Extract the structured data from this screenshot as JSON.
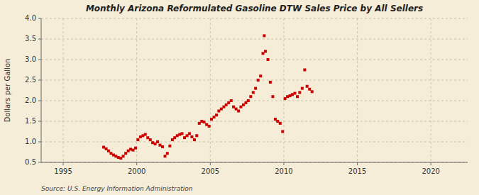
{
  "chart_data": {
    "type": "scatter",
    "title": "Monthly Arizona Reformulated Gasoline DTW Sales Price by All Sellers",
    "ylabel": "Dollars per Gallon",
    "annotations": [
      "Source: U.S. Energy Information Administration"
    ],
    "color": "#CC0000",
    "marker": "square",
    "grid": true,
    "xlim": [
      1993.5,
      2022.5
    ],
    "ylim": [
      0.5,
      4.0
    ],
    "xticks": [
      1995,
      2000,
      2005,
      2010,
      2015,
      2020
    ],
    "yticks": [
      0.5,
      {
        "value": 1.0,
        "label": "1.0"
      },
      1.5,
      {
        "value": 2.0,
        "label": "2.0"
      },
      2.5,
      {
        "value": 3.0,
        "label": "3.0"
      },
      3.5,
      {
        "value": 4.0,
        "label": "4.0"
      }
    ],
    "x": [
      1997.75,
      1997.92,
      1998.08,
      1998.25,
      1998.42,
      1998.58,
      1998.75,
      1998.92,
      1999.08,
      1999.25,
      1999.42,
      1999.58,
      1999.75,
      1999.92,
      2000.08,
      2000.25,
      2000.42,
      2000.58,
      2000.75,
      2000.92,
      2001.08,
      2001.25,
      2001.42,
      2001.58,
      2001.75,
      2001.92,
      2002.08,
      2002.25,
      2002.42,
      2002.58,
      2002.75,
      2002.92,
      2003.08,
      2003.25,
      2003.42,
      2003.58,
      2003.75,
      2003.92,
      2004.08,
      2004.25,
      2004.42,
      2004.58,
      2004.75,
      2004.92,
      2005.08,
      2005.25,
      2005.42,
      2005.58,
      2005.75,
      2005.92,
      2006.08,
      2006.25,
      2006.42,
      2006.58,
      2006.75,
      2006.92,
      2007.08,
      2007.25,
      2007.42,
      2007.58,
      2007.75,
      2007.92,
      2008.08,
      2008.25,
      2008.42,
      2008.58,
      2008.67,
      2008.75,
      2008.92,
      2009.08,
      2009.25,
      2009.42,
      2009.58,
      2009.75,
      2009.92,
      2010.08,
      2010.25,
      2010.42,
      2010.58,
      2010.75,
      2010.92,
      2011.08,
      2011.25,
      2011.42,
      2011.58,
      2011.75,
      2011.92
    ],
    "values": [
      0.87,
      0.83,
      0.78,
      0.72,
      0.68,
      0.65,
      0.62,
      0.6,
      0.65,
      0.72,
      0.78,
      0.82,
      0.8,
      0.85,
      1.05,
      1.12,
      1.15,
      1.18,
      1.1,
      1.05,
      0.98,
      0.95,
      1.0,
      0.92,
      0.88,
      0.65,
      0.72,
      0.9,
      1.05,
      1.1,
      1.15,
      1.18,
      1.2,
      1.1,
      1.15,
      1.2,
      1.12,
      1.05,
      1.15,
      1.45,
      1.5,
      1.48,
      1.42,
      1.38,
      1.55,
      1.6,
      1.65,
      1.75,
      1.8,
      1.85,
      1.9,
      1.95,
      2.0,
      1.85,
      1.8,
      1.75,
      1.85,
      1.9,
      1.95,
      2.0,
      2.1,
      2.2,
      2.3,
      2.5,
      2.6,
      3.15,
      3.58,
      3.2,
      3.0,
      2.45,
      2.1,
      1.55,
      1.5,
      1.45,
      1.25,
      2.05,
      2.1,
      2.12,
      2.15,
      2.18,
      2.1,
      2.2,
      2.3,
      2.75,
      2.35,
      2.28,
      2.22
    ]
  }
}
